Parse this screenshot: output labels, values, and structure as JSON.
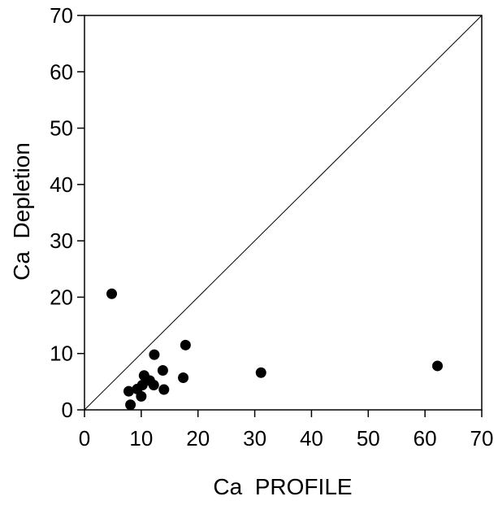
{
  "chart_data": {
    "type": "scatter",
    "title": "",
    "xlabel": "Ca  PROFILE",
    "ylabel": "Ca  Depletion",
    "xlim": [
      0,
      70
    ],
    "ylim": [
      0,
      70
    ],
    "x_ticks": [
      0,
      10,
      20,
      30,
      40,
      50,
      60,
      70
    ],
    "y_ticks": [
      0,
      10,
      20,
      30,
      40,
      50,
      60,
      70
    ],
    "reference_line": {
      "type": "identity",
      "from": [
        0,
        0
      ],
      "to": [
        70,
        70
      ]
    },
    "grid": false,
    "marker_color": "#000000",
    "series": [
      {
        "points": [
          {
            "x": 4.8,
            "y": 20.6
          },
          {
            "x": 7.8,
            "y": 3.3
          },
          {
            "x": 8.1,
            "y": 0.9
          },
          {
            "x": 9.3,
            "y": 3.7
          },
          {
            "x": 10.0,
            "y": 2.4
          },
          {
            "x": 10.2,
            "y": 4.4
          },
          {
            "x": 10.5,
            "y": 6.1
          },
          {
            "x": 11.5,
            "y": 5.2
          },
          {
            "x": 12.2,
            "y": 4.4
          },
          {
            "x": 12.3,
            "y": 9.8
          },
          {
            "x": 13.8,
            "y": 7.0
          },
          {
            "x": 14.0,
            "y": 3.6
          },
          {
            "x": 17.4,
            "y": 5.7
          },
          {
            "x": 17.8,
            "y": 11.5
          },
          {
            "x": 31.1,
            "y": 6.6
          },
          {
            "x": 62.2,
            "y": 7.8
          }
        ]
      }
    ]
  }
}
